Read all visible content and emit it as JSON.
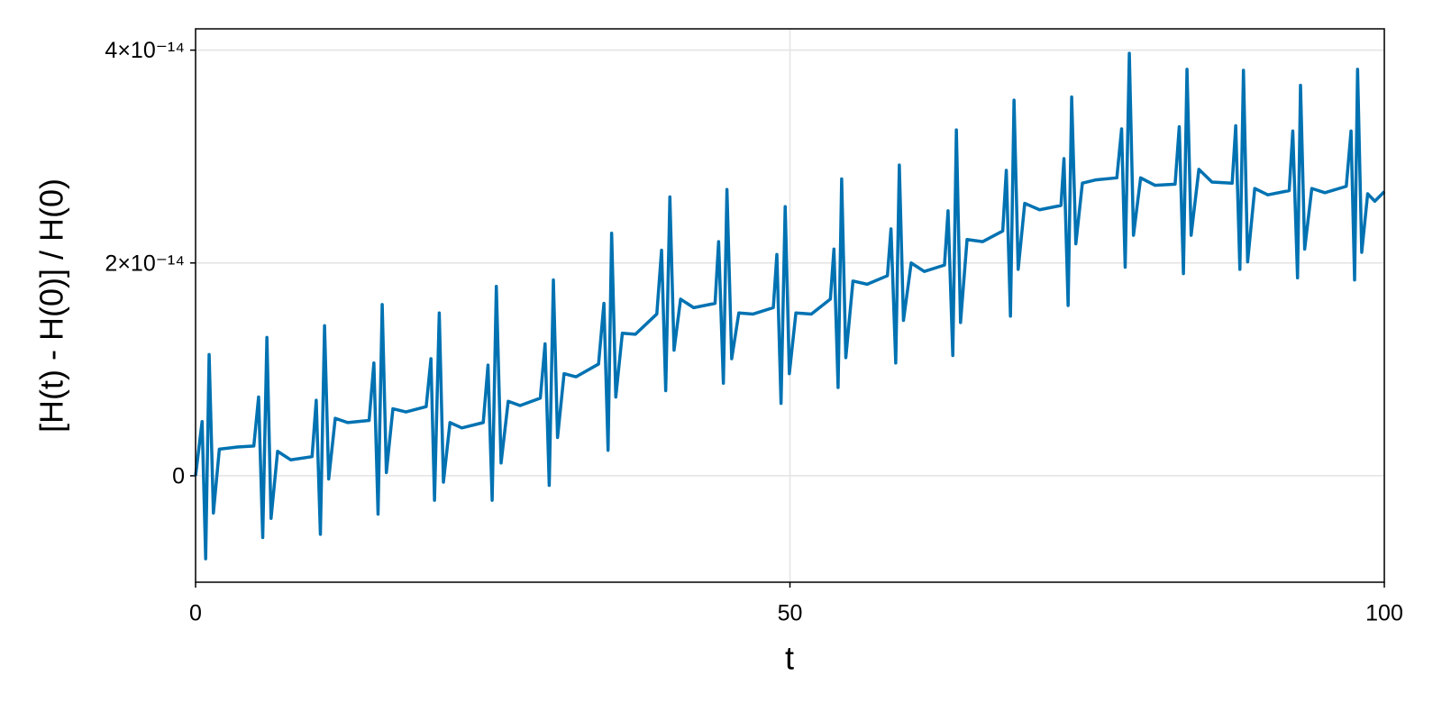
{
  "chart_data": {
    "type": "line",
    "xlabel": "t",
    "ylabel": "[H(t) - H(0)] / H(0)",
    "color": "#0072b2",
    "grid": true,
    "xlim": [
      0,
      100
    ],
    "xticks": [
      0,
      50,
      100
    ],
    "ylim": [
      -1e-14,
      4.2e-14
    ],
    "yticks": [
      0,
      {
        "value": 2e-14,
        "label": "2×10⁻¹⁴"
      },
      {
        "value": 4e-14,
        "label": "4×10⁻¹⁴"
      }
    ],
    "x": [
      0,
      0.55,
      0.85,
      1.14,
      1.5,
      2.0,
      3.5,
      4.9,
      5.3,
      5.65,
      6.0,
      6.35,
      6.9,
      8.0,
      9.8,
      10.15,
      10.5,
      10.85,
      11.2,
      11.75,
      12.8,
      14.6,
      15.0,
      15.35,
      15.7,
      16.05,
      16.6,
      17.7,
      19.4,
      19.8,
      20.1,
      20.5,
      20.85,
      21.4,
      22.4,
      24.2,
      24.6,
      24.95,
      25.3,
      25.7,
      26.3,
      27.3,
      29.0,
      29.4,
      29.75,
      30.1,
      30.45,
      31.0,
      32.0,
      33.9,
      34.35,
      34.7,
      35.0,
      35.35,
      35.9,
      37.0,
      38.8,
      39.2,
      39.55,
      39.9,
      40.25,
      40.8,
      41.9,
      43.7,
      44.0,
      44.4,
      44.7,
      45.1,
      45.7,
      46.9,
      48.6,
      48.9,
      49.25,
      49.6,
      49.95,
      50.5,
      51.8,
      53.4,
      53.7,
      54.05,
      54.35,
      54.7,
      55.3,
      56.5,
      58.2,
      58.5,
      58.9,
      59.2,
      59.55,
      60.2,
      61.3,
      63.0,
      63.3,
      63.7,
      64.0,
      64.35,
      64.9,
      66.2,
      67.9,
      68.2,
      68.55,
      68.85,
      69.2,
      69.75,
      71.0,
      72.8,
      73.05,
      73.4,
      73.7,
      74.05,
      74.6,
      75.7,
      77.5,
      77.9,
      78.2,
      78.55,
      78.9,
      79.5,
      80.7,
      82.4,
      82.75,
      83.1,
      83.4,
      83.75,
      84.4,
      85.5,
      87.2,
      87.5,
      87.85,
      88.15,
      88.5,
      89.1,
      90.2,
      92.0,
      92.3,
      92.7,
      92.95,
      93.3,
      93.9,
      95.0,
      96.8,
      97.2,
      97.5,
      97.75,
      98.1,
      98.6,
      99.2,
      100
    ],
    "values": [
      0,
      5.1e-15,
      -7.8e-15,
      1.14e-14,
      -3.5e-15,
      2.5e-15,
      2.7e-15,
      2.8e-15,
      7.4e-15,
      -5.8e-15,
      1.3e-14,
      -4e-15,
      2.3e-15,
      1.5e-15,
      1.8e-15,
      7.1e-15,
      -5.5e-15,
      1.41e-14,
      -3e-16,
      5.4e-15,
      5e-15,
      5.2e-15,
      1.06e-14,
      -3.6e-15,
      1.61e-14,
      3e-16,
      6.3e-15,
      6e-15,
      6.5e-15,
      1.1e-14,
      -2.3e-15,
      1.53e-14,
      -6e-16,
      5e-15,
      4.5e-15,
      5e-15,
      1.04e-14,
      -2.3e-15,
      1.78e-14,
      1.2e-15,
      7e-15,
      6.6e-15,
      7.3e-15,
      1.24e-14,
      -9e-16,
      1.84e-14,
      3.6e-15,
      9.6e-15,
      9.3e-15,
      1.05e-14,
      1.62e-14,
      2.4e-15,
      2.28e-14,
      7.4e-15,
      1.34e-14,
      1.33e-14,
      1.52e-14,
      2.12e-14,
      8e-15,
      2.62e-14,
      1.18e-14,
      1.66e-14,
      1.58e-14,
      1.62e-14,
      2.2e-14,
      8.7e-15,
      2.69e-14,
      1.1e-14,
      1.53e-14,
      1.52e-14,
      1.58e-14,
      2.08e-14,
      6.8e-15,
      2.53e-14,
      9.6e-15,
      1.53e-14,
      1.52e-14,
      1.66e-14,
      2.13e-14,
      8.3e-15,
      2.79e-14,
      1.11e-14,
      1.83e-14,
      1.8e-14,
      1.88e-14,
      2.32e-14,
      1.06e-14,
      2.92e-14,
      1.46e-14,
      2e-14,
      1.92e-14,
      1.98e-14,
      2.49e-14,
      1.13e-14,
      3.25e-14,
      1.44e-14,
      2.22e-14,
      2.2e-14,
      2.3e-14,
      2.87e-14,
      1.5e-14,
      3.53e-14,
      1.94e-14,
      2.56e-14,
      2.5e-14,
      2.54e-14,
      2.98e-14,
      1.6e-14,
      3.56e-14,
      2.18e-14,
      2.75e-14,
      2.78e-14,
      2.8e-14,
      3.26e-14,
      1.96e-14,
      3.97e-14,
      2.26e-14,
      2.8e-14,
      2.73e-14,
      2.74e-14,
      3.28e-14,
      1.9e-14,
      3.82e-14,
      2.26e-14,
      2.88e-14,
      2.76e-14,
      2.75e-14,
      3.29e-14,
      1.94e-14,
      3.81e-14,
      2.01e-14,
      2.7e-14,
      2.64e-14,
      2.68e-14,
      3.24e-14,
      1.86e-14,
      3.67e-14,
      2.13e-14,
      2.7e-14,
      2.66e-14,
      2.72e-14,
      3.24e-14,
      1.84e-14,
      3.82e-14,
      2.1e-14,
      2.65e-14,
      2.58e-14,
      2.67e-14
    ]
  }
}
